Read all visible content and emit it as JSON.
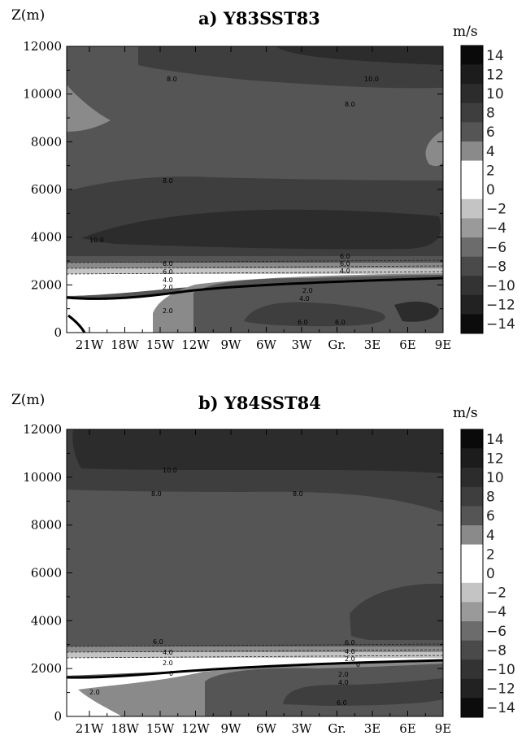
{
  "chart_data": [
    {
      "type": "heatmap",
      "title": "a) Y83SST83",
      "ylabel": "Z(m)",
      "colorbar_unit": "m/s",
      "x_ticks": [
        "21W",
        "18W",
        "15W",
        "12W",
        "9W",
        "6W",
        "3W",
        "Gr.",
        "3E",
        "6E",
        "9E"
      ],
      "y_ticks": [
        0,
        2000,
        4000,
        6000,
        8000,
        10000,
        12000
      ],
      "ylim": [
        0,
        12000
      ],
      "contour_labels": [
        "8.0",
        "10.0",
        "8.0",
        "8.0",
        "10.0",
        "6.0",
        "6.0",
        "4.0",
        "2.0",
        "6.0",
        "6.0",
        "4.0",
        "2.0",
        "2.0",
        "4.0",
        "6.0",
        "6.0"
      ]
    },
    {
      "type": "heatmap",
      "title": "b) Y84SST84",
      "ylabel": "Z(m)",
      "colorbar_unit": "m/s",
      "x_ticks": [
        "21W",
        "18W",
        "15W",
        "12W",
        "9W",
        "6W",
        "3W",
        "Gr.",
        "3E",
        "6E",
        "9E"
      ],
      "y_ticks": [
        0,
        2000,
        4000,
        6000,
        8000,
        10000,
        12000
      ],
      "ylim": [
        0,
        12000
      ],
      "contour_labels": [
        "10.0",
        "8.0",
        "8.0",
        "6.0",
        "4.0",
        "2.0",
        "0",
        "6.0",
        "4.0",
        "2.0",
        "0",
        "2.0",
        "4.0",
        "6.0",
        "2.0"
      ]
    }
  ],
  "colorbar": {
    "labels": [
      "14",
      "12",
      "10",
      "8",
      "6",
      "4",
      "2",
      "0",
      "−2",
      "−4",
      "−6",
      "−8",
      "−10",
      "−12",
      "−14"
    ],
    "colors": [
      "#0a0a0a",
      "#1c1c1c",
      "#2c2c2c",
      "#3e3e3e",
      "#555555",
      "#8a8a8a",
      "#ffffff",
      "#ffffff",
      "#c4c4c4",
      "#9a9a9a",
      "#6c6c6c",
      "#4a4a4a",
      "#333333",
      "#222222",
      "#0c0c0c"
    ]
  }
}
